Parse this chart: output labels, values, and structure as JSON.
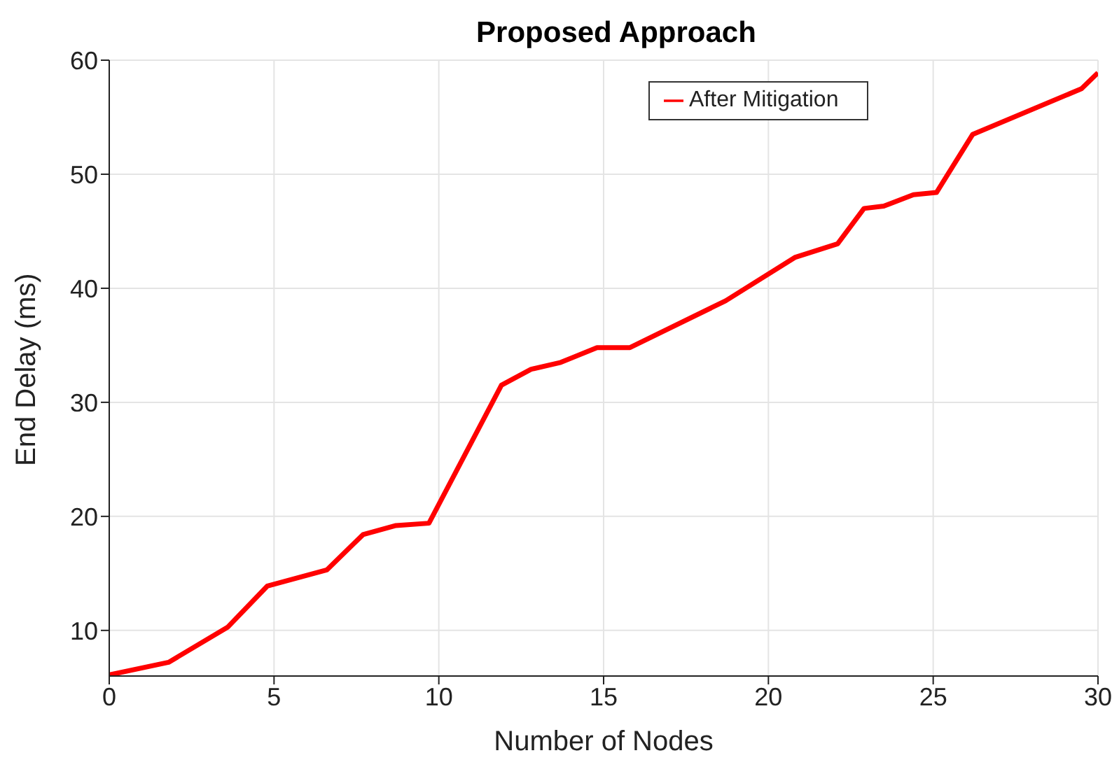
{
  "chart_data": {
    "type": "line",
    "title": "Proposed Approach",
    "xlabel": "Number of Nodes",
    "ylabel": "End Delay (ms)",
    "x": [
      0,
      1.8,
      3.6,
      4.8,
      6.6,
      7.7,
      8.7,
      9.7,
      11.9,
      12.8,
      13.7,
      14.8,
      15.8,
      18.7,
      20.8,
      22.1,
      22.9,
      23.5,
      24.4,
      25.1,
      26.2,
      29.5,
      30
    ],
    "series": [
      {
        "name": "After Mitigation",
        "color": "#ff0000",
        "values": [
          6.1,
          7.2,
          10.3,
          13.9,
          15.3,
          18.4,
          19.2,
          19.4,
          31.5,
          32.9,
          33.5,
          34.8,
          34.8,
          38.9,
          42.7,
          43.9,
          47.0,
          47.2,
          48.2,
          48.4,
          53.5,
          57.5,
          58.9
        ]
      }
    ],
    "xlim": [
      0,
      30
    ],
    "xticks": [
      0,
      5,
      10,
      15,
      20,
      25,
      30
    ],
    "ylim": [
      6,
      60
    ],
    "yticks": [
      10,
      20,
      30,
      40,
      50,
      60
    ],
    "grid": true,
    "legend": "top right",
    "marker": "none",
    "line_style": "solid"
  }
}
